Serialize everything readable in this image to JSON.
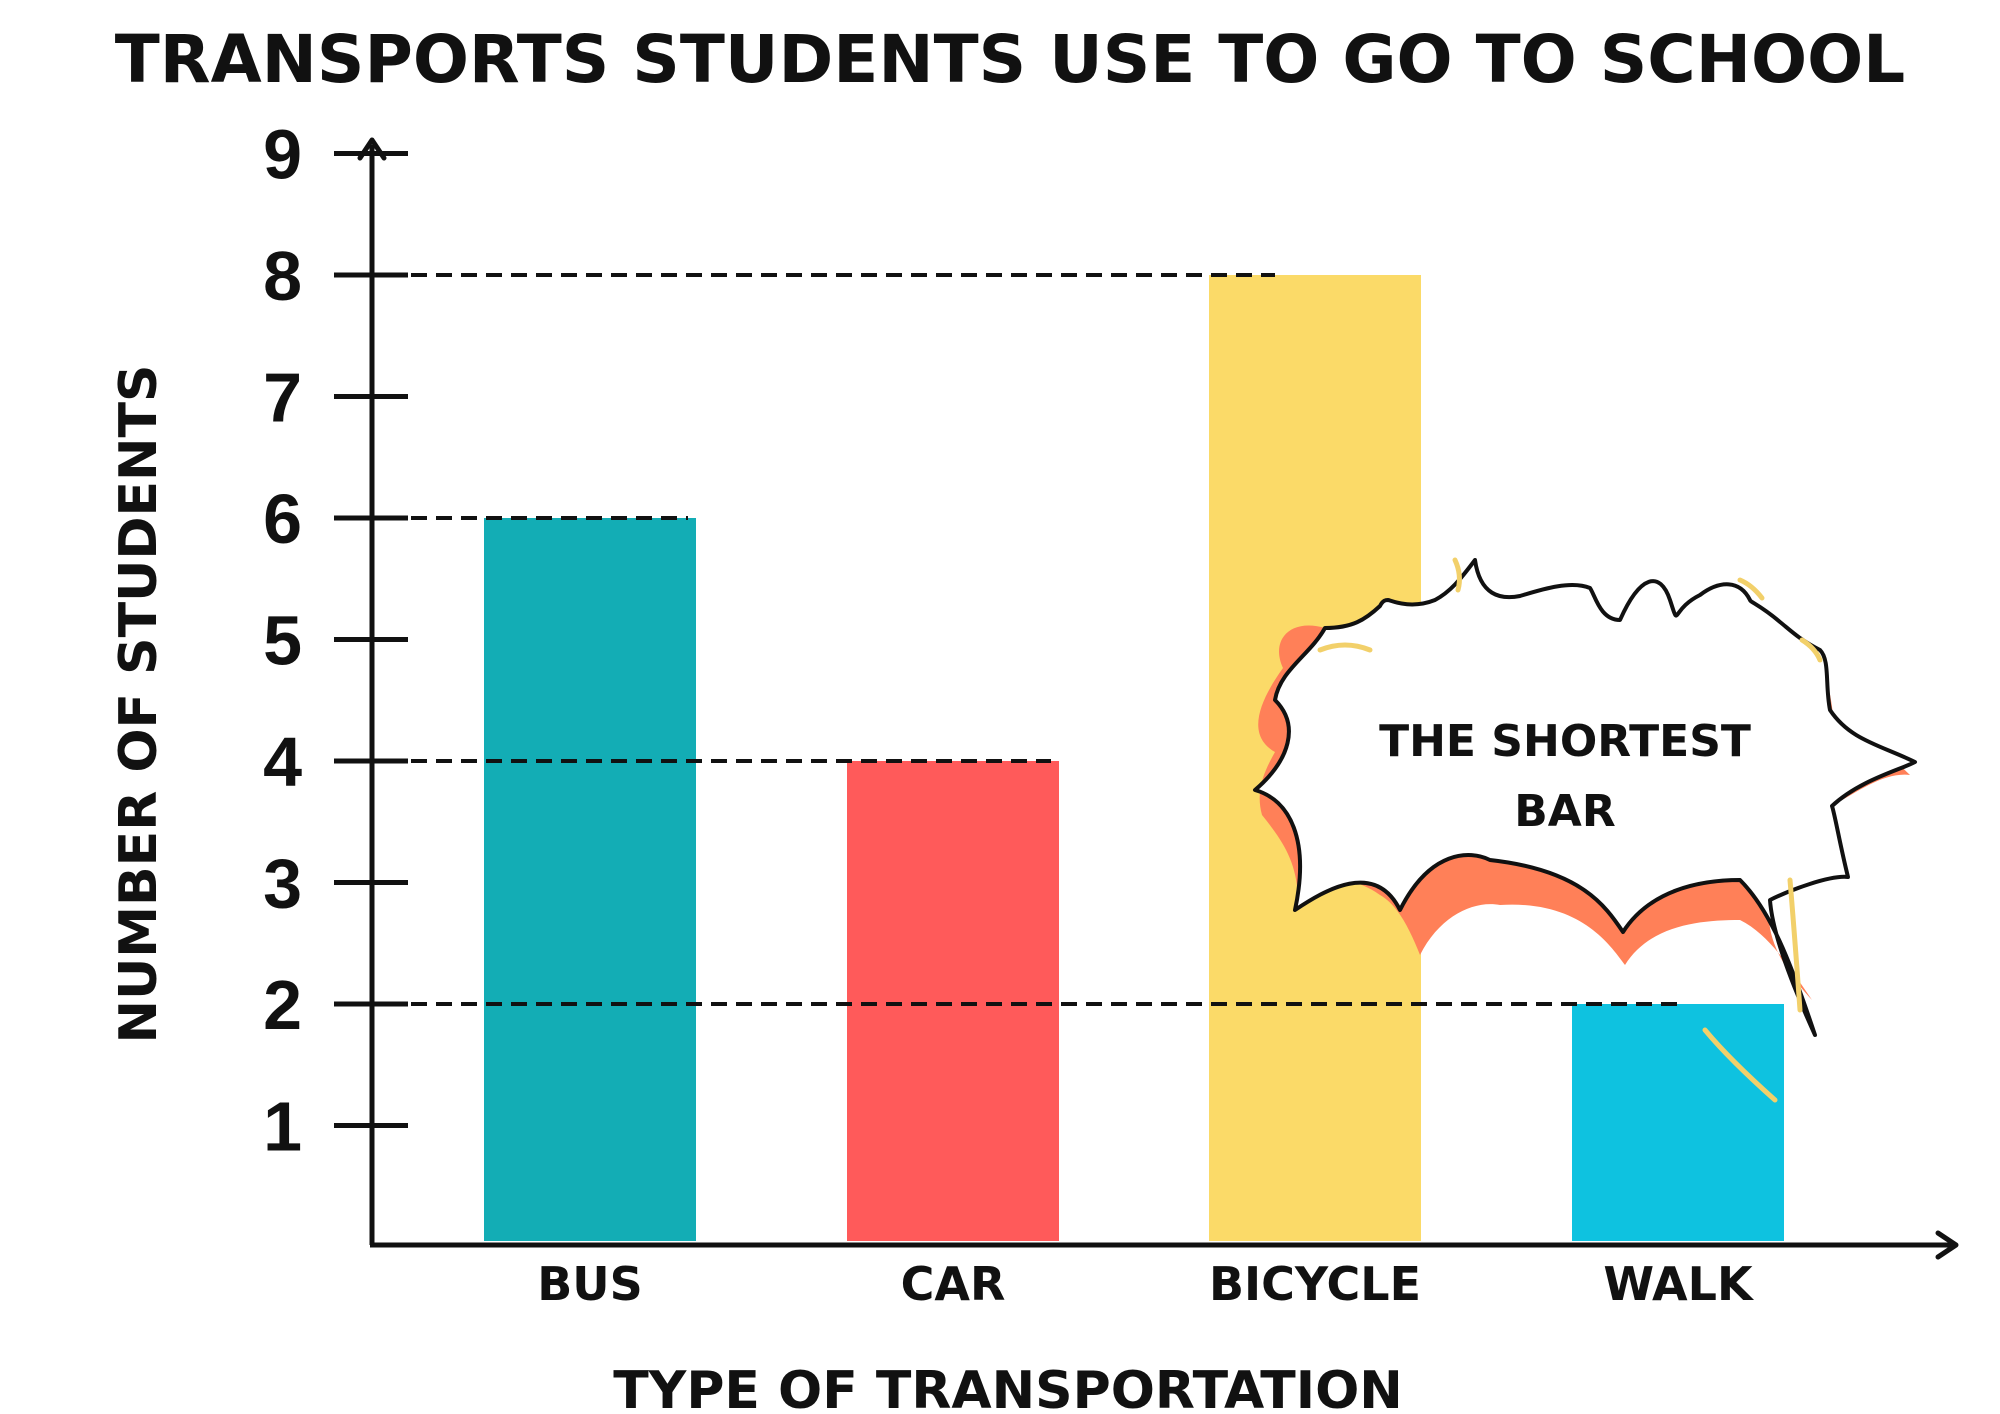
{
  "chart_data": {
    "type": "bar",
    "title": "TRANSPORTS STUDENTS USE TO GO TO SCHOOL",
    "xlabel": "TYPE OF TRANSPORTATION",
    "ylabel": "NUMBER OF STUDENTS",
    "categories": [
      "BUS",
      "CAR",
      "BICYCLE",
      "WALK"
    ],
    "values": [
      6,
      4,
      8,
      2
    ],
    "colors": [
      "#13ADB5",
      "#FF5A5A",
      "#FBDA68",
      "#0EC2E0"
    ],
    "yticks": [
      1,
      2,
      3,
      4,
      5,
      6,
      7,
      8,
      9
    ],
    "ylim": [
      0,
      9
    ],
    "grid": false,
    "reference_lines": "dashed lines from y-axis to top of each bar",
    "annotation": {
      "line1": "THE SHORTEST",
      "line2": "BAR",
      "points_to": "WALK"
    }
  }
}
